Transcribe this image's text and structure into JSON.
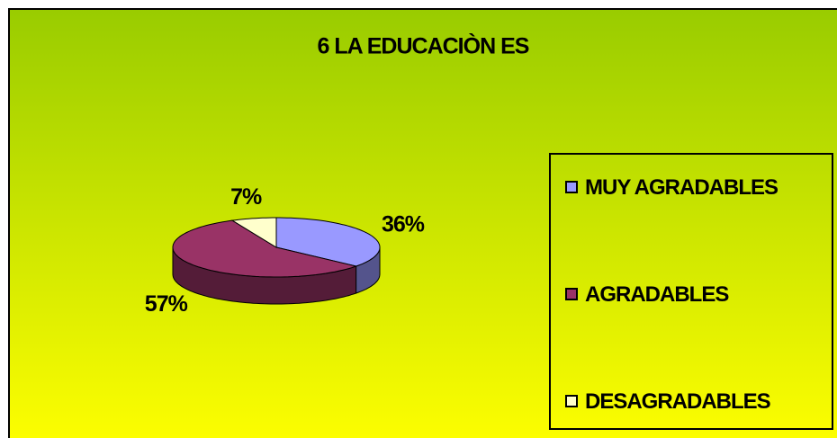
{
  "chart_data": {
    "type": "pie",
    "title": "6 LA EDUCACIÒN ES",
    "categories": [
      "MUY AGRADABLES",
      "AGRADABLES",
      "DESAGRADABLES"
    ],
    "values": [
      36,
      57,
      7
    ],
    "value_labels": [
      "36%",
      "57%",
      "7%"
    ],
    "colors": [
      "#9999ff",
      "#993366",
      "#ffffcc"
    ],
    "legend": "right"
  }
}
